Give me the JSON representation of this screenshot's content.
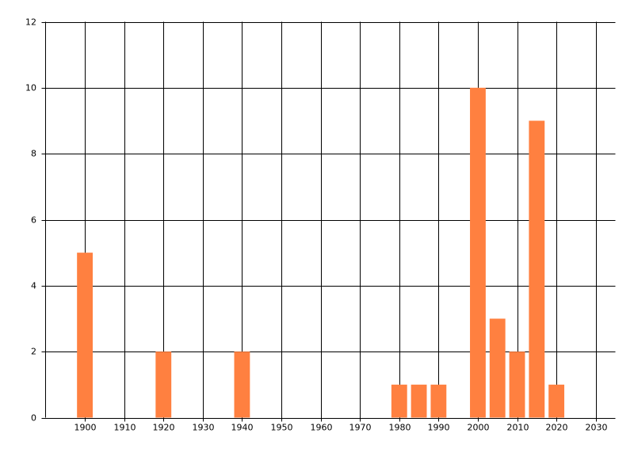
{
  "chart_data": {
    "type": "bar",
    "x": [
      1900,
      1920,
      1940,
      1980,
      1985,
      1990,
      2000,
      2005,
      2010,
      2015,
      2020
    ],
    "values": [
      5,
      2,
      2,
      1,
      1,
      1,
      10,
      3,
      2,
      9,
      1
    ],
    "color": "#ff8040",
    "xlim": [
      1890,
      2035
    ],
    "xticks": [
      1900,
      1910,
      1920,
      1930,
      1940,
      1950,
      1960,
      1970,
      1980,
      1990,
      2000,
      2010,
      2020,
      2030
    ],
    "ylim": [
      0,
      12
    ],
    "yticks": [
      0,
      2,
      4,
      6,
      8,
      10,
      12
    ],
    "grid": true
  }
}
